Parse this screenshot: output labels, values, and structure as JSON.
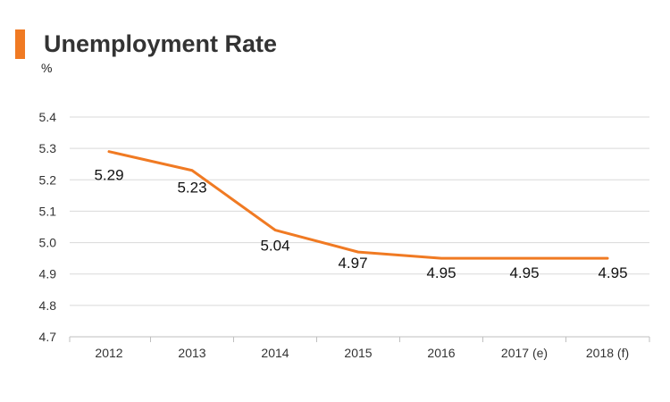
{
  "header": {
    "title": "Unemployment Rate",
    "unit": "%"
  },
  "colors": {
    "accent": "#f07a23",
    "line": "#f07a23",
    "grid": "#d9d9d9",
    "text": "#333333"
  },
  "chart_data": {
    "type": "line",
    "title": "Unemployment Rate",
    "ylabel": "%",
    "xlabel": "",
    "categories": [
      "2012",
      "2013",
      "2014",
      "2015",
      "2016",
      "2017 (e)",
      "2018 (f)"
    ],
    "values": [
      5.29,
      5.23,
      5.04,
      4.97,
      4.95,
      4.95,
      4.95
    ],
    "data_labels": [
      "5.29",
      "5.23",
      "5.04",
      "4.97",
      "4.95",
      "4.95",
      "4.95"
    ],
    "yticks": [
      "4.7",
      "4.8",
      "4.9",
      "5.0",
      "5.1",
      "5.2",
      "5.3",
      "5.4"
    ],
    "ylim": [
      4.7,
      5.4
    ],
    "grid": true,
    "legend": "none"
  }
}
